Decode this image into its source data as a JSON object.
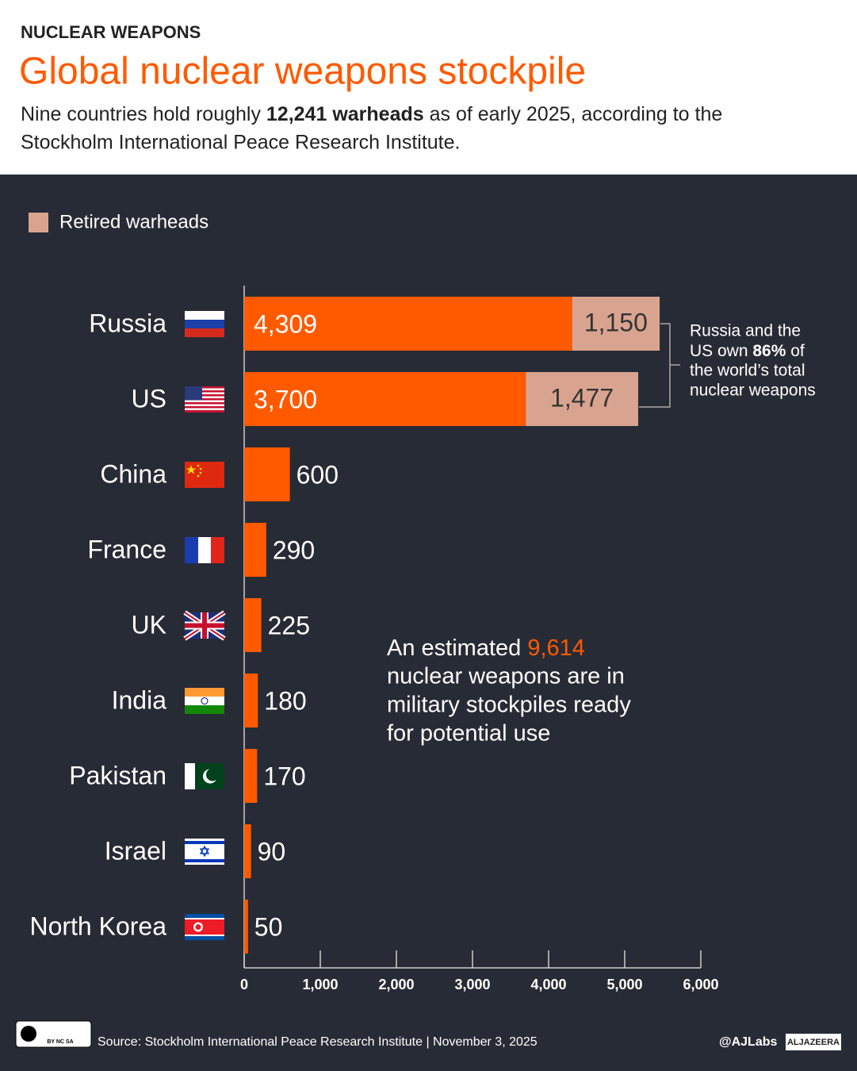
{
  "chart_data": {
    "type": "bar",
    "kicker": "NUCLEAR WEAPONS",
    "title": "Global nuclear weapons stockpile",
    "subtitle": {
      "pre": "Nine countries hold roughly ",
      "bold": "12,241 warheads",
      "post1": " as of early 2025, according to the",
      "post2": "Stockholm International Peace Research Institute."
    },
    "categories": [
      "Russia",
      "US",
      "China",
      "France",
      "UK",
      "India",
      "Pakistan",
      "Israel",
      "North Korea"
    ],
    "series": [
      {
        "color": "#ff5a00",
        "values": [
          4309,
          3700,
          600,
          290,
          225,
          180,
          170,
          90,
          50
        ],
        "value_labels": [
          "4,309",
          "3,700",
          "600",
          "290",
          "225",
          "180",
          "170",
          "90",
          "50"
        ]
      },
      {
        "name": "Retired warheads",
        "color": "#d9a48f",
        "values": [
          1150,
          1477,
          null,
          null,
          null,
          null,
          null,
          null,
          null
        ],
        "value_labels": [
          "1,150",
          "1,477",
          null,
          null,
          null,
          null,
          null,
          null,
          null
        ]
      }
    ],
    "xlim": [
      0,
      6000
    ],
    "xticks": [
      0,
      {
        "value": 1000,
        "label": "1,000"
      },
      {
        "value": 2000,
        "label": "2,000"
      },
      {
        "value": 3000,
        "label": "3,000"
      },
      {
        "value": 4000,
        "label": "4,000"
      },
      {
        "value": 5000,
        "label": "5,000"
      },
      {
        "value": 6000,
        "label": "6,000"
      }
    ],
    "legend": "top-left",
    "annotations": {
      "bracket_note": {
        "line1": "Russia and the",
        "line2_pre": "US own ",
        "line2_bold": "86%",
        "line2_post": " of",
        "line3": "the world’s total",
        "line4": "nuclear weapons"
      },
      "stockpile_note": {
        "line1_pre": "An estimated ",
        "line1_highlight": "9,614",
        "line2": "nuclear weapons are in",
        "line3": "military stockpiles ready",
        "line4": "for potential use"
      }
    },
    "license": "BY NC SA",
    "source": "Source: Stockholm International Peace Research Institute  |  November 3, 2025",
    "credit": "@AJLabs",
    "brand": "ALJAZEERA"
  }
}
